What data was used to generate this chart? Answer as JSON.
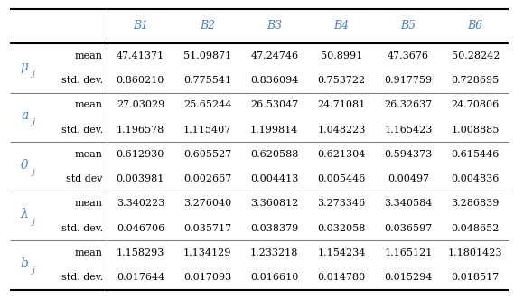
{
  "columns": [
    "B1",
    "B2",
    "B3",
    "B4",
    "B5",
    "B6"
  ],
  "params": [
    {
      "symbol_main": "μ",
      "symbol_sub": "j",
      "rows": [
        {
          "label": "mean",
          "values": [
            "47.41371",
            "51.09871",
            "47.24746",
            "50.8991",
            "47.3676",
            "50.28242"
          ]
        },
        {
          "label": "std. dev.",
          "values": [
            "0.860210",
            "0.775541",
            "0.836094",
            "0.753722",
            "0.917759",
            "0.728695"
          ]
        }
      ]
    },
    {
      "symbol_main": "a",
      "symbol_sub": "j",
      "rows": [
        {
          "label": "mean",
          "values": [
            "27.03029",
            "25.65244",
            "26.53047",
            "24.71081",
            "26.32637",
            "24.70806"
          ]
        },
        {
          "label": "std. dev.",
          "values": [
            "1.196578",
            "1.115407",
            "1.199814",
            "1.048223",
            "1.165423",
            "1.008885"
          ]
        }
      ]
    },
    {
      "symbol_main": "θ",
      "symbol_sub": "j",
      "rows": [
        {
          "label": "mean",
          "values": [
            "0.612930",
            "0.605527",
            "0.620588",
            "0.621304",
            "0.594373",
            "0.615446"
          ]
        },
        {
          "label": "std dev",
          "values": [
            "0.003981",
            "0.002667",
            "0.004413",
            "0.005446",
            "0.00497",
            "0.004836"
          ]
        }
      ]
    },
    {
      "symbol_main": "λ",
      "symbol_sub": "j",
      "rows": [
        {
          "label": "mean",
          "values": [
            "3.340223",
            "3.276040",
            "3.360812",
            "3.273346",
            "3.340584",
            "3.286839"
          ]
        },
        {
          "label": "std. dev.",
          "values": [
            "0.046706",
            "0.035717",
            "0.038379",
            "0.032058",
            "0.036597",
            "0.048652"
          ]
        }
      ]
    },
    {
      "symbol_main": "b",
      "symbol_sub": "j",
      "rows": [
        {
          "label": "mean",
          "values": [
            "1.158293",
            "1.134129",
            "1.233218",
            "1.154234",
            "1.165121",
            "1.1801423"
          ]
        },
        {
          "label": "std. dev.",
          "values": [
            "0.017644",
            "0.017093",
            "0.016610",
            "0.014780",
            "0.015294",
            "0.018517"
          ]
        }
      ]
    }
  ],
  "header_color": "#4f81bd",
  "text_color": "#000000",
  "bg_color": "#ffffff",
  "thick_lw": 1.5,
  "thin_lw": 0.7,
  "header_fs": 9,
  "label_fs": 8,
  "data_fs": 8,
  "symbol_fs": 10,
  "sub_fs": 7
}
